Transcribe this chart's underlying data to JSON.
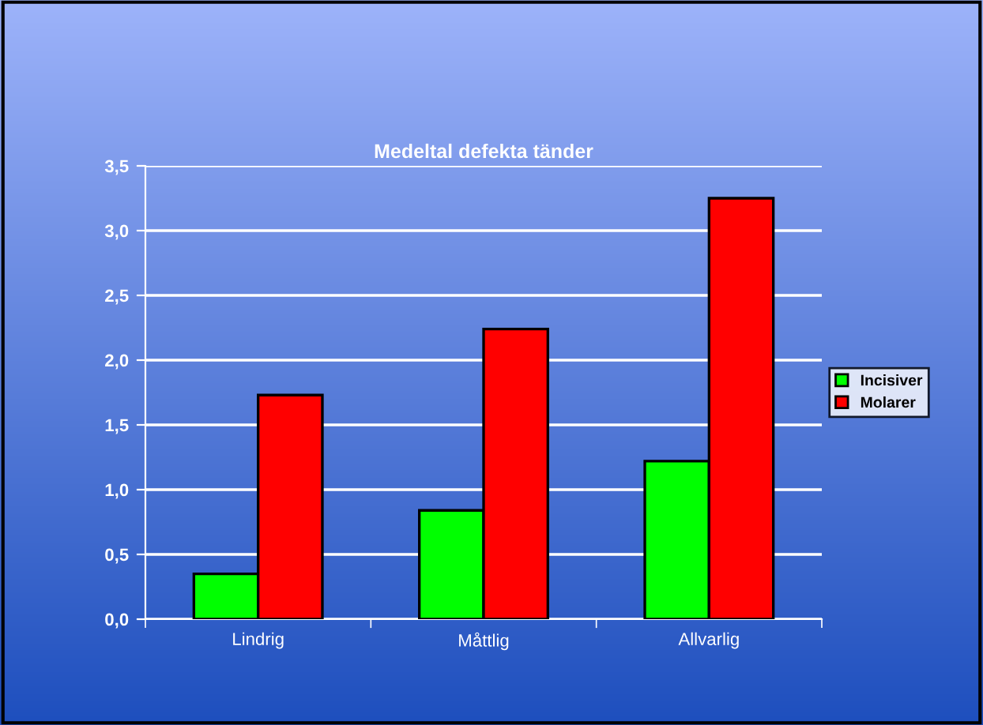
{
  "chart_data": {
    "type": "bar",
    "title": "Medeltal defekta tänder",
    "categories": [
      "Lindrig",
      "Måttlig",
      "Allvarlig"
    ],
    "series": [
      {
        "name": "Incisiver",
        "color": "#00ff00",
        "values": [
          0.35,
          0.84,
          1.22
        ]
      },
      {
        "name": "Molarer",
        "color": "#ff0000",
        "values": [
          1.73,
          2.24,
          3.25
        ]
      }
    ],
    "ylim": [
      0,
      3.5
    ],
    "yticks": [
      {
        "value": 0,
        "label": "0,0"
      },
      {
        "value": 0.5,
        "label": "0,5"
      },
      {
        "value": 1,
        "label": "1,0"
      },
      {
        "value": 1.5,
        "label": "1,5"
      },
      {
        "value": 2,
        "label": "2,0"
      },
      {
        "value": 2.5,
        "label": "2,5"
      },
      {
        "value": 3,
        "label": "3,0"
      },
      {
        "value": 3.5,
        "label": "3,5"
      }
    ],
    "grid": "y",
    "legend": "right"
  }
}
